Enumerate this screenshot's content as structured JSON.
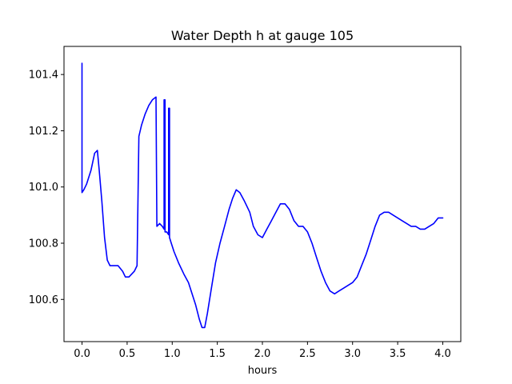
{
  "chart_data": {
    "type": "line",
    "title": "Water Depth h at gauge 105",
    "xlabel": "hours",
    "ylabel": "",
    "xlim": [
      -0.2,
      4.2
    ],
    "ylim": [
      100.45,
      101.5
    ],
    "xticks": [
      0.0,
      0.5,
      1.0,
      1.5,
      2.0,
      2.5,
      3.0,
      3.5,
      4.0
    ],
    "xtick_labels": [
      "0.0",
      "0.5",
      "1.0",
      "1.5",
      "2.0",
      "2.5",
      "3.0",
      "3.5",
      "4.0"
    ],
    "yticks": [
      100.6,
      100.8,
      101.0,
      101.2,
      101.4
    ],
    "ytick_labels": [
      "100.6",
      "100.8",
      "101.0",
      "101.2",
      "101.4"
    ],
    "grid": false,
    "colors": {
      "line": "#0000ff"
    },
    "series": [
      {
        "x": [
          0.0,
          0.0,
          0.02,
          0.05,
          0.1,
          0.14,
          0.17,
          0.19,
          0.22,
          0.25,
          0.28,
          0.31,
          0.35,
          0.4,
          0.45,
          0.48,
          0.52,
          0.55,
          0.58,
          0.61,
          0.63,
          0.63,
          0.66,
          0.7,
          0.74,
          0.78,
          0.82,
          0.83,
          0.83,
          0.86,
          0.89,
          0.91,
          0.91,
          0.92,
          0.92,
          0.94,
          0.96,
          0.96,
          0.97,
          0.97,
          0.99,
          1.02,
          1.07,
          1.13,
          1.18,
          1.22,
          1.26,
          1.3,
          1.33,
          1.36,
          1.39,
          1.43,
          1.48,
          1.53,
          1.58,
          1.63,
          1.67,
          1.71,
          1.75,
          1.8,
          1.86,
          1.9,
          1.95,
          2.0,
          2.05,
          2.1,
          2.15,
          2.2,
          2.25,
          2.3,
          2.35,
          2.4,
          2.45,
          2.5,
          2.55,
          2.6,
          2.65,
          2.7,
          2.75,
          2.8,
          2.85,
          2.9,
          2.95,
          3.0,
          3.05,
          3.1,
          3.15,
          3.2,
          3.25,
          3.3,
          3.35,
          3.4,
          3.45,
          3.5,
          3.55,
          3.6,
          3.65,
          3.7,
          3.75,
          3.8,
          3.85,
          3.9,
          3.95,
          4.0
        ],
        "y": [
          101.44,
          100.98,
          100.99,
          101.01,
          101.06,
          101.12,
          101.13,
          101.06,
          100.95,
          100.82,
          100.74,
          100.72,
          100.72,
          100.72,
          100.7,
          100.68,
          100.68,
          100.69,
          100.7,
          100.72,
          101.18,
          101.18,
          101.22,
          101.26,
          101.29,
          101.31,
          101.32,
          100.86,
          100.86,
          100.87,
          100.86,
          100.85,
          101.31,
          101.31,
          100.84,
          100.84,
          100.83,
          101.28,
          101.28,
          100.82,
          100.8,
          100.77,
          100.73,
          100.69,
          100.66,
          100.62,
          100.58,
          100.53,
          100.5,
          100.5,
          100.55,
          100.63,
          100.73,
          100.8,
          100.86,
          100.92,
          100.96,
          100.99,
          100.98,
          100.95,
          100.91,
          100.86,
          100.83,
          100.82,
          100.85,
          100.88,
          100.91,
          100.94,
          100.94,
          100.92,
          100.88,
          100.86,
          100.86,
          100.84,
          100.8,
          100.75,
          100.7,
          100.66,
          100.63,
          100.62,
          100.63,
          100.64,
          100.65,
          100.66,
          100.68,
          100.72,
          100.76,
          100.81,
          100.86,
          100.9,
          100.91,
          100.91,
          100.9,
          100.89,
          100.88,
          100.87,
          100.86,
          100.86,
          100.85,
          100.85,
          100.86,
          100.87,
          100.89,
          100.89
        ]
      }
    ]
  }
}
